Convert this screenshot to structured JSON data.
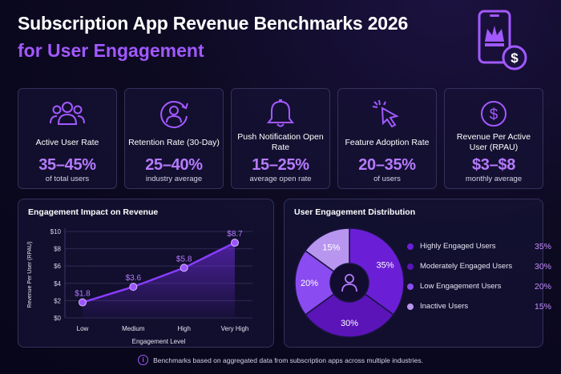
{
  "header": {
    "title": "Subscription App Revenue Benchmarks 2026",
    "subtitle": "for User Engagement"
  },
  "metrics": [
    {
      "label": "Active User Rate",
      "value": "35–45%",
      "sub": "of total users",
      "icon": "users-icon"
    },
    {
      "label": "Retention Rate (30-Day)",
      "value": "25–40%",
      "sub": "industry average",
      "icon": "user-refresh-icon"
    },
    {
      "label": "Push Notification Open Rate",
      "value": "15–25%",
      "sub": "average open rate",
      "icon": "bell-icon"
    },
    {
      "label": "Feature Adoption Rate",
      "value": "20–35%",
      "sub": "of users",
      "icon": "cursor-click-icon"
    },
    {
      "label": "Revenue Per Active User (RPAU)",
      "value": "$3–$8",
      "sub": "monthly average",
      "icon": "dollar-circle-icon"
    }
  ],
  "line_panel": {
    "title": "Engagement Impact on Revenue"
  },
  "pie_panel": {
    "title": "User Engagement Distribution"
  },
  "footer": {
    "note": "Benchmarks based on aggregated data from subscription apps across multiple industries.",
    "icon_glyph": "i"
  },
  "colors": {
    "accent": "#a259ff",
    "background": "#0d0a22"
  },
  "chart_data": [
    {
      "type": "area",
      "title": "Engagement Impact on Revenue",
      "xlabel": "Engagement Level",
      "ylabel": "Revenue Per User (RPAU)",
      "categories": [
        "Low",
        "Medium",
        "High",
        "Very High"
      ],
      "values": [
        1.8,
        3.6,
        5.8,
        8.7
      ],
      "data_labels": [
        "$1.8",
        "$3.6",
        "$5.8",
        "$8.7"
      ],
      "ylim": [
        0,
        10
      ],
      "yticks": [
        0,
        2,
        4,
        6,
        8,
        10
      ],
      "ytick_labels": [
        "$0",
        "$2",
        "$4",
        "$6",
        "$8",
        "$10"
      ],
      "grid": true
    },
    {
      "type": "pie",
      "title": "User Engagement Distribution",
      "donut": true,
      "center_icon": "user-icon",
      "slices": [
        {
          "name": "Highly Engaged Users",
          "value": 35,
          "label": "35%",
          "color": "#6a1fd6"
        },
        {
          "name": "Moderately Engaged Users",
          "value": 30,
          "label": "30%",
          "color": "#5a14b8"
        },
        {
          "name": "Low Engagement Users",
          "value": 20,
          "label": "20%",
          "color": "#8a4cf0"
        },
        {
          "name": "Inactive Users",
          "value": 15,
          "label": "15%",
          "color": "#b896f0"
        }
      ],
      "legend": "right"
    }
  ]
}
